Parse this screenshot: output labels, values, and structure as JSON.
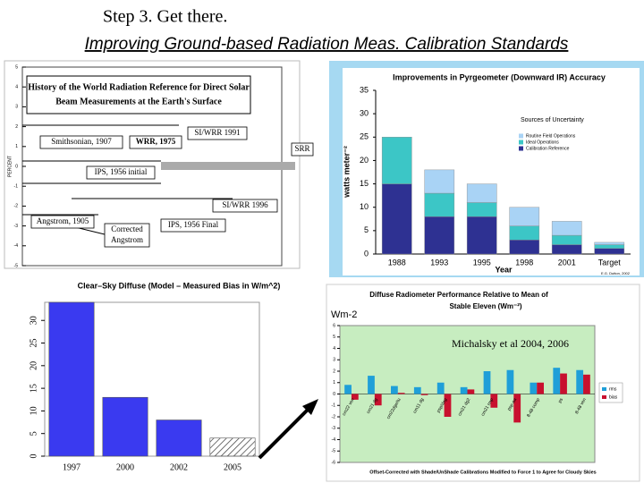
{
  "title": "Step 3.   Get there.",
  "subtitle": "Improving Ground-based Radiation Meas. Calibration Standards",
  "annotations": [
    "Wm-2",
    "Michalsky et al 2004, 2006"
  ],
  "chart_data": [
    {
      "type": "annotated",
      "title": [
        "History of the World Radiation Reference for Direct Solar",
        "Beam Measurements at the Earth's Surface"
      ],
      "ylabel": "PERCENT",
      "ylim": [
        -5,
        5
      ],
      "yticks": [
        -5,
        -4,
        -3,
        -2,
        -1,
        0,
        1,
        2,
        3,
        4,
        5
      ],
      "labels": [
        "Smithsonian, 1907",
        "WRR, 1975",
        "SI/WRR 1991",
        "SRR",
        "IPS, 1956 initial",
        "SI/WRR 1996",
        "Angstrom, 1905",
        "Corrected",
        "Angstrom",
        "IPS, 1956 Final"
      ]
    },
    {
      "type": "stacked_bar",
      "title": "Improvements in Pyrgeometer (Downward IR) Accuracy",
      "ylabel": "watts meter⁻²",
      "xlabel": "Year",
      "legend_title": "Sources of Uncertainty",
      "credit": "E.G. Dutton, 2002",
      "categories": [
        "1988",
        "1993",
        "1995",
        "1998",
        "2001",
        "Target"
      ],
      "series": [
        {
          "name": "Calibration Reference",
          "color": "#2e3192",
          "values": [
            15,
            8,
            8,
            3,
            2,
            1.2
          ]
        },
        {
          "name": "Ideal Operations",
          "color": "#3cc6c6",
          "values": [
            10,
            5,
            3,
            3,
            2,
            0.8
          ]
        },
        {
          "name": "Routine Field Operations",
          "color": "#a9d3f5",
          "values": [
            0,
            5,
            4,
            4,
            3,
            0.5
          ]
        }
      ],
      "ylim": [
        0,
        35
      ],
      "yticks": [
        0,
        5,
        10,
        15,
        20,
        25,
        30,
        35
      ],
      "legend": "upper right"
    },
    {
      "type": "bar",
      "title": "Clear–Sky Diffuse (Model – Measured Bias in W/m^2)",
      "categories": [
        "1997",
        "2000",
        "2002",
        "2005"
      ],
      "values": [
        34,
        13,
        8,
        4
      ],
      "color": "#3a3af0",
      "patterns": [
        "solid",
        "solid",
        "solid",
        "hatched"
      ],
      "ylim": [
        0,
        34
      ],
      "yticks": [
        0,
        5,
        10,
        15,
        20,
        25,
        30
      ]
    },
    {
      "type": "grouped_bar",
      "title": [
        "Diffuse Radiometer Performance Relative to Mean of",
        "Stable Eleven (Wm⁻²)"
      ],
      "footer": "Offset-Corrected with Shade/UnShade Calibrations Modified to Force 1 to Agree for Cloudy Skies",
      "categories": [
        "cm22 ven",
        "cm21 dg",
        "cm22dge/tu",
        "cm11 dg",
        "psp/dag",
        "cm21 dg2",
        "cm21 rmp",
        "psp-aa",
        "8-48 comp",
        "ps",
        "8-48 ven"
      ],
      "series": [
        {
          "name": "rms",
          "color": "#1f9fd8",
          "values": [
            0.8,
            1.6,
            0.7,
            0.6,
            1.0,
            0.6,
            2.0,
            2.1,
            1.0,
            2.3,
            2.1
          ]
        },
        {
          "name": "bias",
          "color": "#c8102e",
          "values": [
            -0.5,
            -1.0,
            0.1,
            -0.1,
            -2.0,
            0.4,
            -1.2,
            -2.5,
            1.0,
            1.8,
            1.7
          ]
        }
      ],
      "ylim": [
        -6,
        6
      ],
      "yticks": [
        -6,
        -5,
        -4,
        -3,
        -2,
        -1,
        0,
        1,
        2,
        3,
        4,
        5,
        6
      ],
      "legend": "right"
    }
  ]
}
